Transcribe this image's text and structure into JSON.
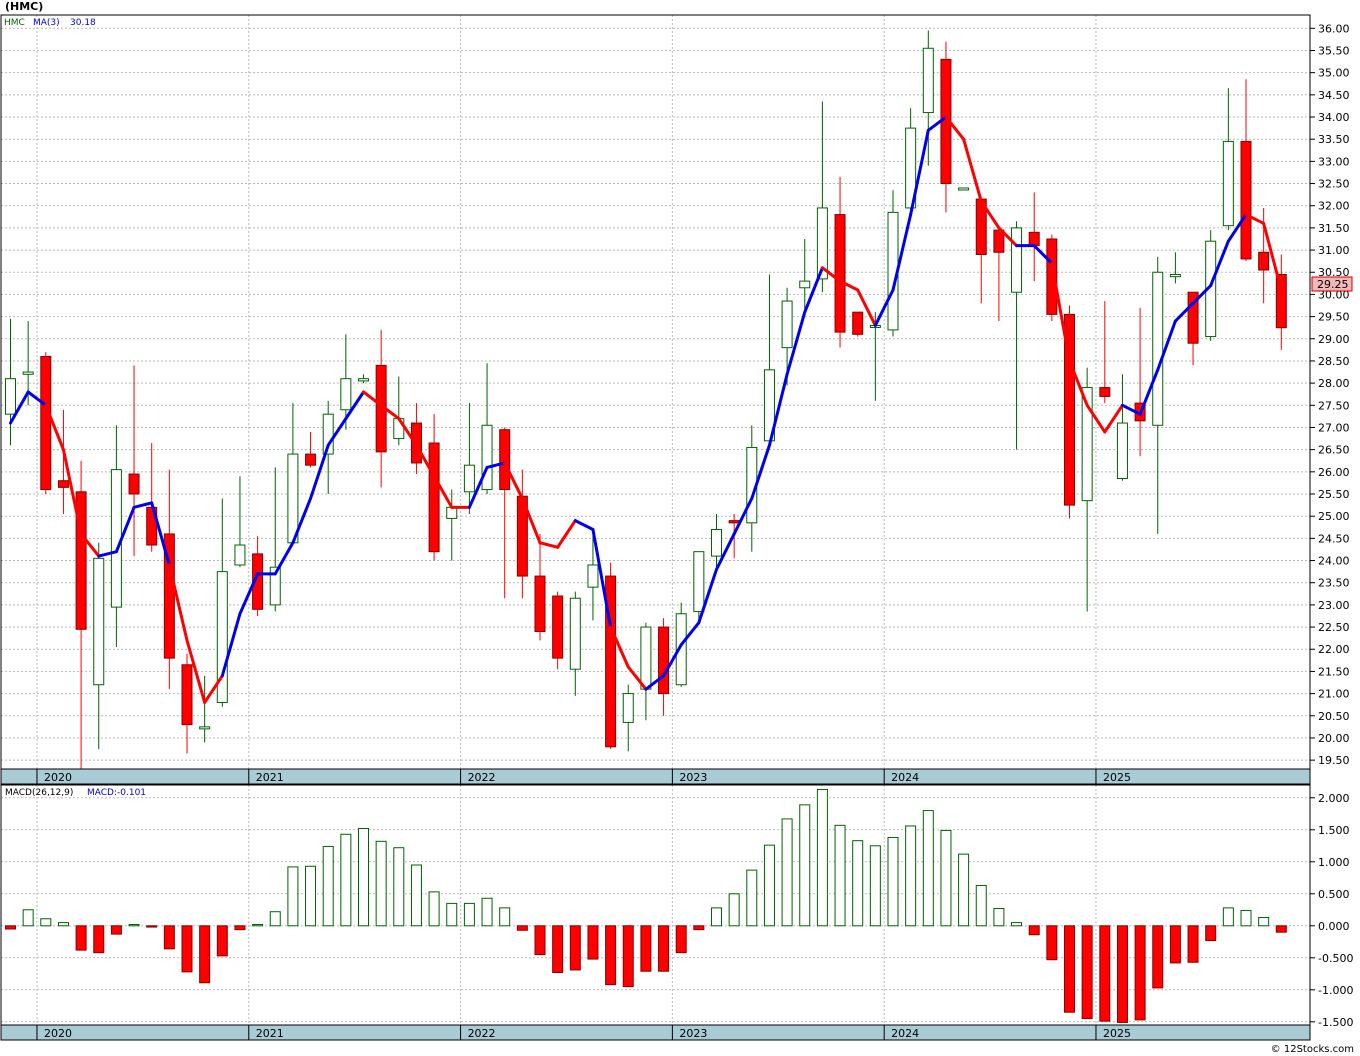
{
  "header": {
    "symbol_title": "(HMC)",
    "ticker": "HMC",
    "ma_label": "MA(3)",
    "ma_value": "30.18",
    "last_price": "29.25",
    "macd_label": "MACD(26,12,9)",
    "macd_value_label": "MACD:-0.101",
    "watermark": "© 12Stocks.com"
  },
  "colors": {
    "up": "#006400",
    "down": "#ff0000",
    "ma_up": "#0000ee",
    "ma_down": "#ff0000",
    "band": "#a9cbd6",
    "grid": "#b9b9b9",
    "price_tag": "#f4b6b6"
  },
  "chart_data": [
    {
      "type": "candlestick",
      "interval": "monthly",
      "x_labels": [
        "2020",
        "2021",
        "2022",
        "2023",
        "2024",
        "2025"
      ],
      "y_ticks": [
        "19.50",
        "20.00",
        "20.50",
        "21.00",
        "21.50",
        "22.00",
        "22.50",
        "23.00",
        "23.50",
        "24.00",
        "24.50",
        "25.00",
        "25.50",
        "26.00",
        "26.50",
        "27.00",
        "27.50",
        "28.00",
        "28.50",
        "29.00",
        "29.50",
        "30.00",
        "30.50",
        "31.00",
        "31.50",
        "32.00",
        "32.50",
        "33.00",
        "33.50",
        "34.00",
        "34.50",
        "35.00",
        "35.50",
        "36.00"
      ],
      "ylim": [
        19.3,
        36.3
      ],
      "grid": true,
      "candles": [
        {
          "o": 27.3,
          "h": 29.45,
          "l": 26.6,
          "c": 28.1
        },
        {
          "o": 28.2,
          "h": 29.4,
          "l": 27.5,
          "c": 28.25
        },
        {
          "o": 28.6,
          "h": 28.7,
          "l": 25.5,
          "c": 25.6
        },
        {
          "o": 25.8,
          "h": 27.4,
          "l": 25.05,
          "c": 25.65
        },
        {
          "o": 25.55,
          "h": 26.25,
          "l": 19.3,
          "c": 22.45
        },
        {
          "o": 21.2,
          "h": 24.4,
          "l": 19.75,
          "c": 24.05
        },
        {
          "o": 22.95,
          "h": 27.05,
          "l": 22.05,
          "c": 26.05
        },
        {
          "o": 25.95,
          "h": 28.4,
          "l": 24.1,
          "c": 25.5
        },
        {
          "o": 25.2,
          "h": 26.65,
          "l": 24.2,
          "c": 24.35
        },
        {
          "o": 24.6,
          "h": 26.05,
          "l": 21.1,
          "c": 21.8
        },
        {
          "o": 21.65,
          "h": 21.9,
          "l": 19.65,
          "c": 20.3
        },
        {
          "o": 20.25,
          "h": 21.4,
          "l": 19.9,
          "c": 20.25
        },
        {
          "o": 20.8,
          "h": 25.4,
          "l": 20.7,
          "c": 23.75
        },
        {
          "o": 23.9,
          "h": 25.9,
          "l": 23.85,
          "c": 24.35
        },
        {
          "o": 24.15,
          "h": 24.55,
          "l": 22.75,
          "c": 22.9
        },
        {
          "o": 23.0,
          "h": 26.1,
          "l": 22.85,
          "c": 23.85
        },
        {
          "o": 24.4,
          "h": 27.55,
          "l": 24.35,
          "c": 26.4
        },
        {
          "o": 26.4,
          "h": 26.9,
          "l": 26.1,
          "c": 26.15
        },
        {
          "o": 26.4,
          "h": 27.6,
          "l": 25.5,
          "c": 27.3
        },
        {
          "o": 27.4,
          "h": 29.1,
          "l": 26.95,
          "c": 28.1
        },
        {
          "o": 28.05,
          "h": 28.2,
          "l": 28.0,
          "c": 28.1
        },
        {
          "o": 28.4,
          "h": 29.2,
          "l": 25.65,
          "c": 26.45
        },
        {
          "o": 26.75,
          "h": 28.15,
          "l": 26.6,
          "c": 27.2
        },
        {
          "o": 27.1,
          "h": 27.55,
          "l": 25.95,
          "c": 26.2
        },
        {
          "o": 26.65,
          "h": 27.3,
          "l": 24.0,
          "c": 24.2
        },
        {
          "o": 24.95,
          "h": 25.6,
          "l": 24.0,
          "c": 25.2
        },
        {
          "o": 25.55,
          "h": 27.55,
          "l": 25.05,
          "c": 26.15
        },
        {
          "o": 25.6,
          "h": 28.45,
          "l": 25.5,
          "c": 27.05
        },
        {
          "o": 26.95,
          "h": 27.0,
          "l": 23.15,
          "c": 25.6
        },
        {
          "o": 25.45,
          "h": 26.05,
          "l": 23.15,
          "c": 23.65
        },
        {
          "o": 23.65,
          "h": 24.6,
          "l": 22.2,
          "c": 22.4
        },
        {
          "o": 23.2,
          "h": 23.3,
          "l": 21.55,
          "c": 21.8
        },
        {
          "o": 21.55,
          "h": 23.3,
          "l": 20.95,
          "c": 23.15
        },
        {
          "o": 23.4,
          "h": 24.7,
          "l": 22.65,
          "c": 23.9
        },
        {
          "o": 23.65,
          "h": 23.95,
          "l": 19.75,
          "c": 19.8
        },
        {
          "o": 20.35,
          "h": 21.2,
          "l": 19.7,
          "c": 21.0
        },
        {
          "o": 21.1,
          "h": 22.6,
          "l": 20.4,
          "c": 22.5
        },
        {
          "o": 22.5,
          "h": 22.7,
          "l": 20.5,
          "c": 21.0
        },
        {
          "o": 21.2,
          "h": 23.05,
          "l": 21.15,
          "c": 22.8
        },
        {
          "o": 22.85,
          "h": 24.2,
          "l": 22.65,
          "c": 24.2
        },
        {
          "o": 24.1,
          "h": 25.05,
          "l": 23.8,
          "c": 24.7
        },
        {
          "o": 24.9,
          "h": 25.05,
          "l": 24.05,
          "c": 24.85
        },
        {
          "o": 24.85,
          "h": 27.05,
          "l": 24.2,
          "c": 26.55
        },
        {
          "o": 26.7,
          "h": 30.45,
          "l": 26.65,
          "c": 28.3
        },
        {
          "o": 28.8,
          "h": 30.15,
          "l": 27.95,
          "c": 29.85
        },
        {
          "o": 30.15,
          "h": 31.25,
          "l": 29.65,
          "c": 30.3
        },
        {
          "o": 30.35,
          "h": 34.35,
          "l": 30.05,
          "c": 31.95
        },
        {
          "o": 31.8,
          "h": 32.65,
          "l": 28.8,
          "c": 29.15
        },
        {
          "o": 29.6,
          "h": 29.6,
          "l": 29.05,
          "c": 29.1
        },
        {
          "o": 29.3,
          "h": 29.6,
          "l": 27.6,
          "c": 29.3
        },
        {
          "o": 29.2,
          "h": 32.35,
          "l": 29.05,
          "c": 31.85
        },
        {
          "o": 31.95,
          "h": 34.2,
          "l": 31.9,
          "c": 33.75
        },
        {
          "o": 34.1,
          "h": 35.95,
          "l": 32.9,
          "c": 35.55
        },
        {
          "o": 35.3,
          "h": 35.7,
          "l": 31.85,
          "c": 32.5
        },
        {
          "o": 32.4,
          "h": 32.4,
          "l": 32.4,
          "c": 32.4
        },
        {
          "o": 32.15,
          "h": 32.15,
          "l": 29.8,
          "c": 30.9
        },
        {
          "o": 31.45,
          "h": 31.55,
          "l": 29.4,
          "c": 30.95
        },
        {
          "o": 30.05,
          "h": 31.65,
          "l": 26.5,
          "c": 31.5
        },
        {
          "o": 31.4,
          "h": 32.3,
          "l": 30.3,
          "c": 31.1
        },
        {
          "o": 31.25,
          "h": 31.35,
          "l": 29.4,
          "c": 29.55
        },
        {
          "o": 29.55,
          "h": 29.75,
          "l": 24.95,
          "c": 25.25
        },
        {
          "o": 25.35,
          "h": 28.35,
          "l": 22.85,
          "c": 27.9
        },
        {
          "o": 27.9,
          "h": 29.85,
          "l": 27.55,
          "c": 27.7
        },
        {
          "o": 25.85,
          "h": 28.2,
          "l": 25.8,
          "c": 27.1
        },
        {
          "o": 27.55,
          "h": 29.7,
          "l": 26.35,
          "c": 27.15
        },
        {
          "o": 27.05,
          "h": 30.85,
          "l": 24.6,
          "c": 30.5
        },
        {
          "o": 30.4,
          "h": 30.95,
          "l": 30.25,
          "c": 30.45
        },
        {
          "o": 30.05,
          "h": 30.05,
          "l": 28.4,
          "c": 28.9
        },
        {
          "o": 29.05,
          "h": 31.45,
          "l": 28.95,
          "c": 31.2
        },
        {
          "o": 31.55,
          "h": 34.65,
          "l": 31.45,
          "c": 33.45
        },
        {
          "o": 33.45,
          "h": 34.85,
          "l": 30.75,
          "c": 30.8
        },
        {
          "o": 30.95,
          "h": 31.95,
          "l": 29.8,
          "c": 30.55
        },
        {
          "o": 30.45,
          "h": 30.9,
          "l": 28.75,
          "c": 29.25
        }
      ],
      "ma3": [
        27.1,
        27.8,
        27.5,
        26.5,
        24.6,
        24.1,
        24.2,
        25.2,
        25.3,
        23.9,
        22.2,
        20.8,
        21.4,
        22.8,
        23.7,
        23.7,
        24.4,
        25.4,
        26.6,
        27.2,
        27.8,
        27.5,
        27.2,
        26.6,
        25.9,
        25.2,
        25.2,
        26.1,
        26.2,
        25.4,
        24.4,
        24.3,
        24.9,
        24.7,
        22.5,
        21.6,
        21.1,
        21.4,
        22.1,
        22.6,
        23.8,
        24.6,
        25.4,
        26.6,
        28.2,
        29.6,
        30.6,
        30.3,
        30.1,
        29.3,
        30.1,
        31.8,
        33.7,
        34.0,
        33.5,
        32.1,
        31.5,
        31.1,
        31.1,
        30.7,
        28.5,
        27.5,
        26.9,
        27.5,
        27.3,
        28.3,
        29.4,
        29.8,
        30.2,
        31.2,
        31.8,
        31.6,
        30.1
      ],
      "ma3_trend": [
        1,
        1,
        0,
        0,
        0,
        1,
        1,
        1,
        1,
        0,
        0,
        0,
        1,
        1,
        1,
        1,
        1,
        1,
        1,
        1,
        0,
        0,
        0,
        0,
        0,
        0,
        1,
        1,
        0,
        0,
        0,
        0,
        1,
        1,
        0,
        0,
        1,
        1,
        1,
        1,
        1,
        1,
        1,
        1,
        1,
        1,
        0,
        0,
        0,
        1,
        1,
        1,
        1,
        0,
        0,
        0,
        0,
        1,
        1,
        0,
        0,
        0,
        0,
        1,
        1,
        1,
        1,
        1,
        1,
        1,
        0,
        0,
        0
      ]
    },
    {
      "type": "bar",
      "indicator": "MACD(26,12,9)",
      "x_labels": [
        "2020",
        "2021",
        "2022",
        "2023",
        "2024",
        "2025"
      ],
      "y_ticks": [
        "-1.500",
        "-1.000",
        "-0.500",
        "0.000",
        "0.500",
        "1.000",
        "1.500",
        "2.000"
      ],
      "ylim": [
        -1.55,
        2.2
      ],
      "grid": true,
      "values": [
        -0.05,
        0.25,
        0.11,
        0.05,
        -0.38,
        -0.42,
        -0.13,
        0.02,
        -0.02,
        -0.36,
        -0.72,
        -0.89,
        -0.47,
        -0.06,
        0.02,
        0.22,
        0.92,
        0.93,
        1.24,
        1.43,
        1.52,
        1.32,
        1.22,
        0.95,
        0.53,
        0.35,
        0.35,
        0.43,
        0.28,
        -0.07,
        -0.45,
        -0.73,
        -0.69,
        -0.52,
        -0.92,
        -0.95,
        -0.71,
        -0.71,
        -0.42,
        -0.06,
        0.28,
        0.5,
        0.87,
        1.26,
        1.67,
        1.89,
        2.13,
        1.57,
        1.33,
        1.25,
        1.38,
        1.56,
        1.8,
        1.49,
        1.12,
        0.63,
        0.27,
        0.05,
        -0.14,
        -0.53,
        -1.35,
        -1.45,
        -1.49,
        -1.51,
        -1.47,
        -0.97,
        -0.58,
        -0.57,
        -0.23,
        0.28,
        0.24,
        0.13,
        -0.1
      ]
    }
  ]
}
